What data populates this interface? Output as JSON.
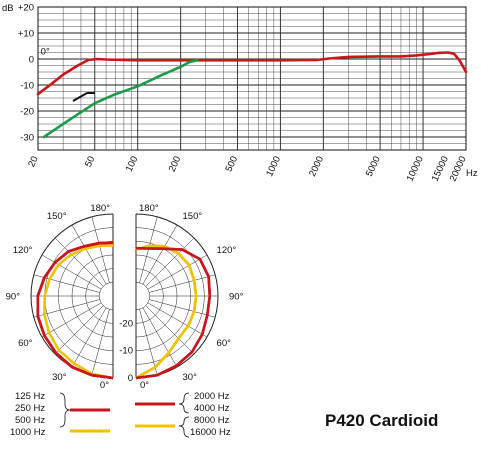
{
  "chart_data": [
    {
      "type": "line",
      "title": "",
      "xlabel": "Hz",
      "ylabel": "dB",
      "x_scale": "log",
      "xlim": [
        20,
        20000
      ],
      "ylim": [
        -35,
        20
      ],
      "grid": true,
      "x_ticks": [
        {
          "value": 20,
          "label": "20"
        },
        {
          "value": 50,
          "label": "50"
        },
        {
          "value": 100,
          "label": "100"
        },
        {
          "value": 200,
          "label": "200"
        },
        {
          "value": 500,
          "label": "500"
        },
        {
          "value": 1000,
          "label": "1000"
        },
        {
          "value": 2000,
          "label": "2000"
        },
        {
          "value": 5000,
          "label": "5000"
        },
        {
          "value": 10000,
          "label": "10000"
        },
        {
          "value": 15000,
          "label": "15000"
        },
        {
          "value": 20000,
          "label": "20000"
        }
      ],
      "y_ticks": [
        {
          "value": 20,
          "label": "+20"
        },
        {
          "value": 10,
          "label": "+10"
        },
        {
          "value": 0,
          "label": "0"
        },
        {
          "value": -10,
          "label": "-10"
        },
        {
          "value": -20,
          "label": "-20"
        },
        {
          "value": -30,
          "label": "-30"
        }
      ],
      "annotations": [
        {
          "text": "0°",
          "x": 23,
          "y": 0.5
        }
      ],
      "series": [
        {
          "color": "#c8161d",
          "points": [
            [
              20,
              -13.5
            ],
            [
              25,
              -9.5
            ],
            [
              30,
              -6
            ],
            [
              38,
              -2.5
            ],
            [
              45,
              -0.4
            ],
            [
              52,
              0
            ],
            [
              60,
              -0.2
            ],
            [
              100,
              -0.5
            ],
            [
              300,
              -0.5
            ],
            [
              1000,
              -0.5
            ],
            [
              1800,
              -0.4
            ],
            [
              2200,
              0.2
            ],
            [
              3000,
              0.8
            ],
            [
              5000,
              1
            ],
            [
              7000,
              1
            ],
            [
              9000,
              1.4
            ],
            [
              11000,
              1.9
            ],
            [
              13000,
              2.4
            ],
            [
              15000,
              2.5
            ],
            [
              16500,
              2
            ],
            [
              18000,
              -0.5
            ],
            [
              20000,
              -5
            ]
          ]
        },
        {
          "color": "#1a9a4a",
          "points": [
            [
              22,
              -30
            ],
            [
              30,
              -25
            ],
            [
              40,
              -20.5
            ],
            [
              50,
              -17
            ],
            [
              70,
              -13.5
            ],
            [
              100,
              -10.5
            ],
            [
              150,
              -6
            ],
            [
              200,
              -3
            ],
            [
              230,
              -1.2
            ],
            [
              260,
              -0.5
            ]
          ]
        }
      ]
    },
    {
      "type": "polar",
      "title": "",
      "rlim": [
        -30,
        0
      ],
      "ring_labels": [
        "-20",
        "-10",
        "0"
      ],
      "angle_labels": [
        "0°",
        "30°",
        "60°",
        "90°",
        "120°",
        "150°",
        "180°"
      ],
      "left_series": [
        {
          "label": "125 Hz",
          "color": "#c8161d",
          "angles": [
            0,
            15,
            30,
            45,
            60,
            75,
            90,
            105,
            120,
            135,
            150,
            165,
            180
          ],
          "values": [
            0,
            0,
            0,
            -0.5,
            -1,
            -1.5,
            -2.5,
            -4,
            -5.5,
            -7,
            -9,
            -10,
            -10.5
          ]
        },
        {
          "label": "250 Hz",
          "color": "#c8161d",
          "angles": [
            0,
            15,
            30,
            45,
            60,
            75,
            90,
            105,
            120,
            135,
            150,
            165,
            180
          ],
          "values": [
            0,
            0,
            0,
            -0.5,
            -1,
            -1.5,
            -2.5,
            -4,
            -5.5,
            -7,
            -9,
            -10,
            -10.5
          ]
        },
        {
          "label": "500 Hz",
          "color": "#c8161d",
          "angles": [
            0,
            15,
            30,
            45,
            60,
            75,
            90,
            105,
            120,
            135,
            150,
            165,
            180
          ],
          "values": [
            0,
            0,
            0,
            -0.5,
            -1,
            -1.5,
            -2.5,
            -4,
            -5.5,
            -7,
            -9,
            -10,
            -10.5
          ]
        },
        {
          "label": "1000 Hz",
          "color": "#f2c100",
          "angles": [
            0,
            15,
            30,
            45,
            60,
            75,
            90,
            105,
            120,
            135,
            150,
            165,
            180
          ],
          "values": [
            0,
            -0.5,
            -1.5,
            -2,
            -3,
            -4,
            -5,
            -6,
            -7,
            -8.5,
            -10,
            -11,
            -11.5
          ]
        }
      ],
      "right_series": [
        {
          "label": "2000 Hz",
          "color": "#c8161d",
          "angles": [
            0,
            15,
            30,
            45,
            60,
            75,
            90,
            105,
            120,
            135,
            150,
            165,
            180
          ],
          "values": [
            0,
            0,
            -0.5,
            -1,
            -2,
            -3,
            -3,
            -2.5,
            -3,
            -6,
            -10,
            -12,
            -12.5
          ]
        },
        {
          "label": "4000 Hz",
          "color": "#c8161d",
          "angles": [
            0,
            15,
            30,
            45,
            60,
            75,
            90,
            105,
            120,
            135,
            150,
            165,
            180
          ],
          "values": [
            0,
            0,
            -0.5,
            -1,
            -2,
            -3,
            -3,
            -2.5,
            -3,
            -6,
            -10,
            -12,
            -12.5
          ]
        },
        {
          "label": "8000 Hz",
          "color": "#f2c100",
          "angles": [
            0,
            15,
            30,
            45,
            60,
            75,
            90,
            105,
            120,
            135,
            150,
            165,
            180
          ],
          "values": [
            0,
            -3,
            -6,
            -8,
            -8,
            -8,
            -8,
            -8,
            -7.5,
            -8,
            -9,
            -11,
            -13
          ]
        },
        {
          "label": "16000 Hz",
          "color": "#f2c100",
          "angles": [
            0,
            15,
            30,
            45,
            60,
            75,
            90,
            105,
            120,
            135,
            150,
            165,
            180
          ],
          "values": [
            0,
            -3,
            -6,
            -8,
            -8,
            -8,
            -8,
            -8,
            -7.5,
            -8,
            -9,
            -11,
            -13
          ]
        }
      ]
    }
  ],
  "title": "P420 Cardioid"
}
